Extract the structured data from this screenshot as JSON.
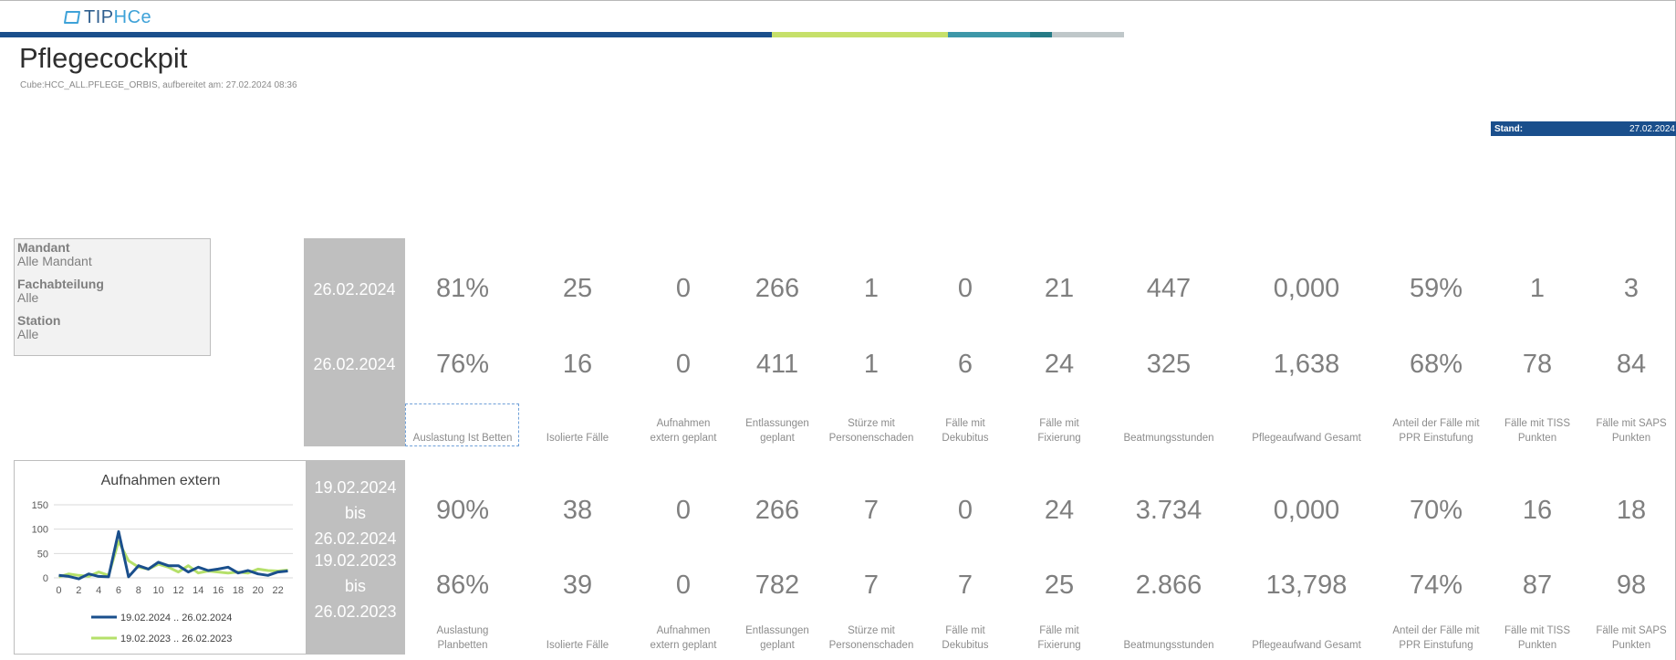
{
  "branding": {
    "logo_tip": "TIP",
    "logo_hce": "HCe",
    "stripe_colors": [
      "#1a4f8c",
      "#c6e06a",
      "#3d97a8",
      "#267b86",
      "#bfc7c9"
    ]
  },
  "header": {
    "title": "Pflegecockpit",
    "subtitle": "Cube:HCC_ALL.PFLEGE_ORBIS, aufbereitet am: 27.02.2024 08:36",
    "stand_label": "Stand:",
    "stand_date": "27.02.2024"
  },
  "filters": [
    {
      "label": "Mandant",
      "value": "Alle Mandant"
    },
    {
      "label": "Fachabteilung",
      "value": "Alle"
    },
    {
      "label": "Station",
      "value": "Alle"
    }
  ],
  "daily": {
    "rows": [
      {
        "date": "26.02.2024",
        "values": [
          "81%",
          "25",
          "0",
          "266",
          "1",
          "0",
          "21",
          "447",
          "0,000",
          "59%",
          "1",
          "3"
        ]
      },
      {
        "date": "26.02.2024",
        "values": [
          "76%",
          "16",
          "0",
          "411",
          "1",
          "6",
          "24",
          "325",
          "1,638",
          "68%",
          "78",
          "84"
        ]
      }
    ],
    "captions": [
      [
        "",
        "Auslastung Ist Betten"
      ],
      [
        "",
        "Isolierte Fälle"
      ],
      [
        "Aufnahmen",
        "extern geplant"
      ],
      [
        "Entlassungen",
        "geplant"
      ],
      [
        "Stürze mit",
        "Personenschaden"
      ],
      [
        "Fälle mit",
        "Dekubitus"
      ],
      [
        "Fälle mit",
        "Fixierung"
      ],
      [
        "",
        "Beatmungsstunden"
      ],
      [
        "",
        "Pflegeaufwand Gesamt"
      ],
      [
        "Anteil der Fälle mit",
        "PPR Einstufung"
      ],
      [
        "Fälle mit TISS",
        "Punkten"
      ],
      [
        "Fälle mit SAPS",
        "Punkten"
      ]
    ]
  },
  "weekly": {
    "rows": [
      {
        "date_from": "19.02.2024",
        "bis": "bis",
        "date_to": "26.02.2024",
        "values": [
          "90%",
          "38",
          "0",
          "266",
          "7",
          "0",
          "24",
          "3.734",
          "0,000",
          "70%",
          "16",
          "18"
        ]
      },
      {
        "date_from": "19.02.2023",
        "bis": "bis",
        "date_to": "26.02.2023",
        "values": [
          "86%",
          "39",
          "0",
          "782",
          "7",
          "7",
          "25",
          "2.866",
          "13,798",
          "74%",
          "87",
          "98"
        ]
      }
    ],
    "captions": [
      [
        "Auslastung",
        "Planbetten"
      ],
      [
        "",
        "Isolierte Fälle"
      ],
      [
        "Aufnahmen",
        "extern geplant"
      ],
      [
        "Entlassungen",
        "geplant"
      ],
      [
        "Stürze mit",
        "Personenschaden"
      ],
      [
        "Fälle mit",
        "Dekubitus"
      ],
      [
        "Fälle mit",
        "Fixierung"
      ],
      [
        "",
        "Beatmungsstunden"
      ],
      [
        "",
        "Pflegeaufwand Gesamt"
      ],
      [
        "Anteil der Fälle mit",
        "PPR Einstufung"
      ],
      [
        "Fälle mit TISS",
        "Punkten"
      ],
      [
        "Fälle mit SAPS",
        "Punkten"
      ]
    ]
  },
  "chart_data": {
    "type": "line",
    "title": "Aufnahmen extern",
    "x": [
      0,
      1,
      2,
      3,
      4,
      5,
      6,
      7,
      8,
      9,
      10,
      11,
      12,
      13,
      14,
      15,
      16,
      17,
      18,
      19,
      20,
      21,
      22,
      23
    ],
    "xticks": [
      0,
      2,
      4,
      6,
      8,
      10,
      12,
      14,
      16,
      18,
      20,
      22
    ],
    "ylim": [
      0,
      150
    ],
    "yticks": [
      0,
      50,
      100,
      150
    ],
    "grid": true,
    "legend": "bottom",
    "series": [
      {
        "name": "19.02.2024 .. 26.02.2024",
        "color": "#1a4f8c",
        "values": [
          5,
          3,
          -2,
          8,
          3,
          2,
          95,
          2,
          25,
          18,
          32,
          25,
          25,
          12,
          22,
          15,
          18,
          22,
          10,
          15,
          8,
          5,
          12,
          14
        ]
      },
      {
        "name": "19.02.2023 .. 26.02.2023",
        "color": "#b5e06a",
        "values": [
          2,
          8,
          5,
          3,
          12,
          5,
          75,
          35,
          22,
          18,
          28,
          22,
          12,
          25,
          10,
          14,
          12,
          10,
          12,
          10,
          18,
          15,
          14,
          16
        ]
      }
    ]
  }
}
